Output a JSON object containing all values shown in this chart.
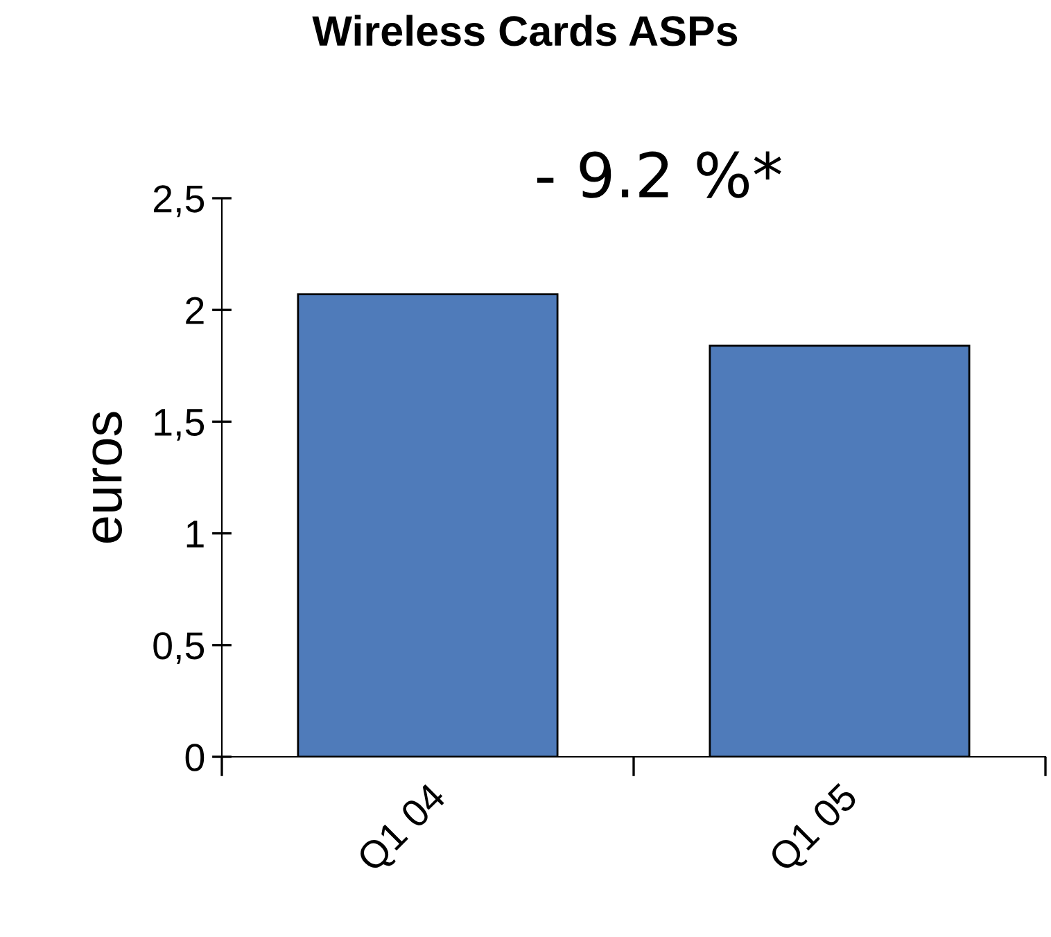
{
  "chart_data": {
    "type": "bar",
    "title": "Wireless Cards ASPs",
    "ylabel": "euros",
    "categories": [
      "Q1 04",
      "Q1 05"
    ],
    "values": [
      2.07,
      1.84
    ],
    "color": "#4f7bba",
    "ylim": [
      0,
      2.5
    ],
    "yticks": [
      0,
      {
        "value": 0.5,
        "label": "0,5"
      },
      1,
      {
        "value": 1.5,
        "label": "1,5"
      },
      2,
      {
        "value": 2.5,
        "label": "2,5"
      }
    ],
    "annotations": [
      "- 9.2 %*"
    ],
    "grid": false,
    "legend": false
  }
}
